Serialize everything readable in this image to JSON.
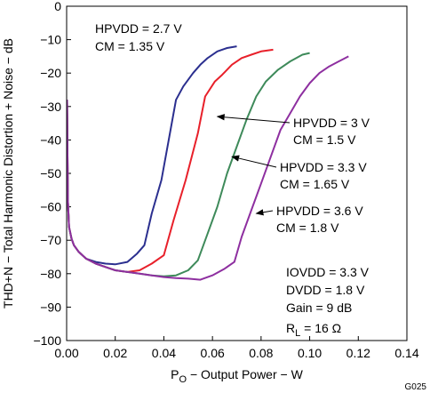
{
  "chart_data": {
    "type": "line",
    "figure_id": "G025",
    "title": "",
    "xlabel_main": "P",
    "xlabel_sub": "O",
    "xlabel_rest": " − Output Power − W",
    "ylabel": "THD+N − Total Harmonic Distortion + Noise − dB",
    "xlim": [
      0,
      0.14
    ],
    "ylim": [
      -100,
      0
    ],
    "x_ticks": [
      "0.00",
      "0.02",
      "0.04",
      "0.06",
      "0.08",
      "0.10",
      "0.12",
      "0.14"
    ],
    "y_ticks": [
      "0",
      "−10",
      "−20",
      "−30",
      "−40",
      "−50",
      "−60",
      "−70",
      "−80",
      "−90",
      "−100"
    ],
    "grid": false,
    "series": [
      {
        "name": "HPVDD = 2.7 V, CM = 1.35 V",
        "color": "#2b2f8f",
        "x": [
          0.0002,
          0.0005,
          0.001,
          0.002,
          0.003,
          0.005,
          0.008,
          0.012,
          0.016,
          0.02,
          0.025,
          0.029,
          0.032,
          0.035,
          0.039,
          0.042,
          0.045,
          0.048,
          0.052,
          0.055,
          0.058,
          0.062,
          0.066,
          0.07
        ],
        "y": [
          -28,
          -58,
          -66,
          -69.5,
          -71.5,
          -73.5,
          -75.5,
          -76.5,
          -77,
          -77.2,
          -76.5,
          -74,
          -71.5,
          -62,
          -52,
          -40,
          -28,
          -24,
          -20,
          -17.5,
          -15.5,
          -13.5,
          -12.5,
          -12
        ]
      },
      {
        "name": "HPVDD = 3 V, CM = 1.5 V",
        "color": "#e8202a",
        "x": [
          0.0002,
          0.0005,
          0.001,
          0.002,
          0.003,
          0.005,
          0.008,
          0.012,
          0.016,
          0.02,
          0.025,
          0.03,
          0.035,
          0.04,
          0.044,
          0.049,
          0.054,
          0.057,
          0.061,
          0.064,
          0.068,
          0.072,
          0.076,
          0.08,
          0.085
        ],
        "y": [
          -28,
          -58,
          -66,
          -69.5,
          -71.5,
          -73.5,
          -75.5,
          -77,
          -78,
          -79,
          -79.5,
          -79,
          -77,
          -74.5,
          -64,
          -52,
          -38,
          -27,
          -22.5,
          -20.5,
          -17.5,
          -15.5,
          -14.5,
          -13.5,
          -13
        ]
      },
      {
        "name": "HPVDD = 3.3 V, CM = 1.65 V",
        "color": "#3e8a5a",
        "x": [
          0.0002,
          0.0005,
          0.001,
          0.002,
          0.003,
          0.005,
          0.008,
          0.012,
          0.016,
          0.02,
          0.025,
          0.03,
          0.035,
          0.04,
          0.045,
          0.05,
          0.054,
          0.058,
          0.062,
          0.066,
          0.07,
          0.074,
          0.078,
          0.082,
          0.087,
          0.092,
          0.097,
          0.1
        ],
        "y": [
          -28,
          -58,
          -66,
          -69.5,
          -71.5,
          -73.5,
          -75.5,
          -77,
          -78,
          -79,
          -79.5,
          -80,
          -80.5,
          -80.8,
          -80.5,
          -79,
          -76,
          -68,
          -60,
          -50,
          -42,
          -34,
          -27,
          -22.5,
          -19,
          -16.5,
          -14.5,
          -14
        ]
      },
      {
        "name": "HPVDD = 3.6 V, CM = 1.8 V",
        "color": "#8e2fa0",
        "x": [
          0.0002,
          0.0005,
          0.001,
          0.002,
          0.003,
          0.005,
          0.008,
          0.012,
          0.016,
          0.02,
          0.025,
          0.03,
          0.035,
          0.04,
          0.045,
          0.05,
          0.055,
          0.06,
          0.065,
          0.069,
          0.072,
          0.076,
          0.08,
          0.084,
          0.088,
          0.092,
          0.096,
          0.1,
          0.104,
          0.108,
          0.112,
          0.116
        ],
        "y": [
          -28,
          -58,
          -66,
          -69.5,
          -71.5,
          -73.5,
          -75.5,
          -77,
          -78,
          -79,
          -79.5,
          -80,
          -80.5,
          -81,
          -81.3,
          -81.5,
          -81.8,
          -80.5,
          -78.5,
          -76.5,
          -69,
          -61,
          -53,
          -45,
          -37,
          -32,
          -27,
          -23,
          -20,
          -18,
          -16.5,
          -15
        ]
      }
    ],
    "series_labels": [
      {
        "lines": [
          "HPVDD = 2.7 V",
          "CM = 1.35 V"
        ],
        "arrow": false
      },
      {
        "lines": [
          "HPVDD = 3 V",
          "CM = 1.5 V"
        ],
        "arrow_to": [
          0.062,
          -33
        ]
      },
      {
        "lines": [
          "HPVDD = 3.3 V",
          "CM = 1.65 V"
        ],
        "arrow_to": [
          0.068,
          -45
        ]
      },
      {
        "lines": [
          "HPVDD = 3.6 V",
          "CM = 1.8 V"
        ],
        "arrow_to": [
          0.078,
          -62
        ]
      }
    ],
    "conditions": [
      "IOVDD = 3.3 V",
      "DVDD = 1.8 V",
      "Gain = 9 dB"
    ],
    "rl_main": "R",
    "rl_sub": "L",
    "rl_rest": " = 16 Ω"
  }
}
